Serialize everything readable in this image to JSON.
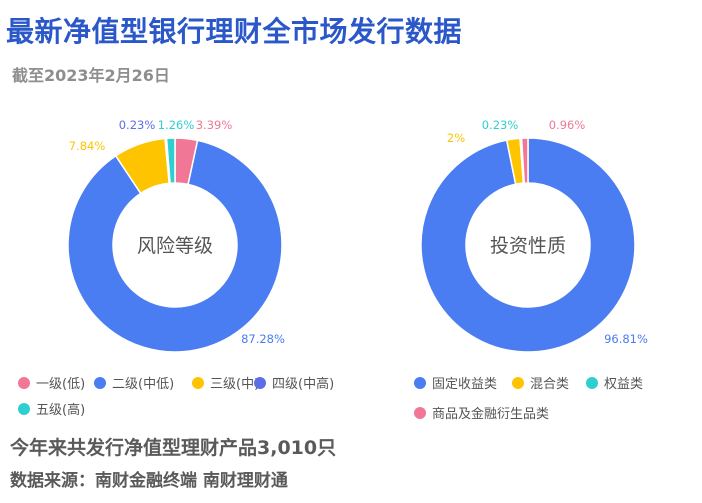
{
  "title": "最新净值型银行理财全市场发行数据",
  "subtitle": "截至2023年2月26日",
  "chart_data": [
    {
      "type": "pie",
      "center_label": "风险等级",
      "categories": [
        "一级(低)",
        "二级(中低)",
        "三级(中)",
        "四级(中高)",
        "五级(高)"
      ],
      "values": [
        3.39,
        87.28,
        7.84,
        0.23,
        1.26
      ],
      "value_labels": [
        "3.39%",
        "87.28%",
        "7.84%",
        "0.23%",
        "1.26%"
      ],
      "colors": [
        "#f07896",
        "#4a7cf2",
        "#fec400",
        "#5b6ee8",
        "#2fcfd1"
      ],
      "legend_position": "bottom"
    },
    {
      "type": "pie",
      "center_label": "投资性质",
      "categories": [
        "固定收益类",
        "混合类",
        "权益类",
        "商品及金融衍生品类"
      ],
      "values": [
        96.81,
        2,
        0.23,
        0.96
      ],
      "value_labels": [
        "96.81%",
        "2%",
        "0.23%",
        "0.96%"
      ],
      "colors": [
        "#4a7cf2",
        "#fec400",
        "#2fcfd1",
        "#f07896"
      ],
      "legend_position": "bottom"
    }
  ],
  "footer": {
    "summary": "今年来共发行净值型理财产品3,010只",
    "source": "数据来源：南财金融终端 南财理财通"
  }
}
